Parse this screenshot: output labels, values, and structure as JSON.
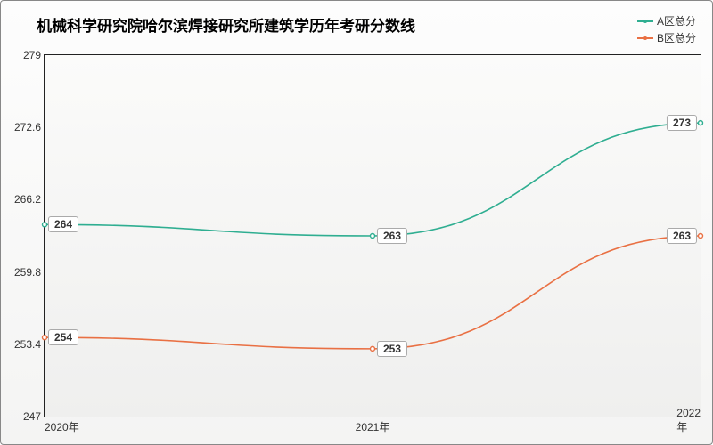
{
  "chart": {
    "type": "line",
    "title": "机械科学研究院哈尔滨焊接研究所建筑学历年考研分数线",
    "title_fontsize": 17,
    "background_gradient": [
      "#fdfdfd",
      "#f4f4f3"
    ],
    "plot_background_gradient": [
      "#fbfbfa",
      "#efefee"
    ],
    "border_color": "#222222",
    "x_categories": [
      "2020年",
      "2021年",
      "2022年"
    ],
    "y_axis": {
      "min": 247,
      "max": 279,
      "ticks": [
        247,
        253.4,
        259.8,
        266.2,
        272.6,
        279
      ],
      "label_fontsize": 12,
      "label_color": "#333333"
    },
    "series": [
      {
        "name": "A区总分",
        "color": "#2fae91",
        "values": [
          264,
          263,
          273
        ],
        "line_width": 1.6,
        "marker": "circle",
        "marker_size": 4
      },
      {
        "name": "B区总分",
        "color": "#e97043",
        "values": [
          254,
          253,
          263
        ],
        "line_width": 1.6,
        "marker": "circle",
        "marker_size": 4
      }
    ],
    "point_label": {
      "fontsize": 12,
      "bg": "#ffffff",
      "border": "#aaaaaa"
    },
    "legend": {
      "position": "top-right",
      "fontsize": 12
    }
  }
}
